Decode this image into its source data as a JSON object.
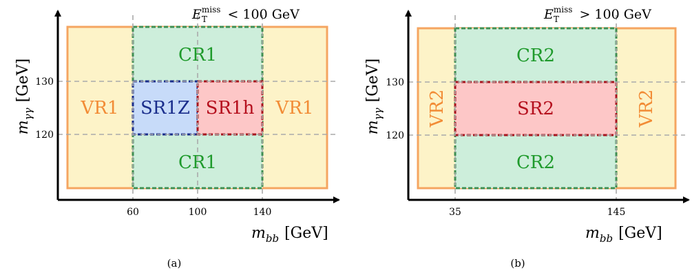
{
  "panels": [
    {
      "caption": "(a)",
      "condition": {
        "symbol": "E",
        "sub": "T",
        "sup": "miss",
        "relation": "< 100 GeV"
      },
      "x_label": {
        "symbol": "m",
        "sub": "bb",
        "unit": "[GeV]"
      },
      "y_label": {
        "symbol": "m",
        "sub": "γγ",
        "unit": "[GeV]"
      },
      "x_ticks": [
        "60",
        "100",
        "140"
      ],
      "y_ticks": [
        "120",
        "130"
      ],
      "regions": {
        "vr_left": "VR1",
        "vr_right": "VR1",
        "cr_top": "CR1",
        "cr_bottom": "CR1",
        "sr_a": "SR1Z",
        "sr_b": "SR1h"
      }
    },
    {
      "caption": "(b)",
      "condition": {
        "symbol": "E",
        "sub": "T",
        "sup": "miss",
        "relation": "> 100 GeV"
      },
      "x_label": {
        "symbol": "m",
        "sub": "bb",
        "unit": "[GeV]"
      },
      "y_label": {
        "symbol": "m",
        "sub": "γγ",
        "unit": "[GeV]"
      },
      "x_ticks": [
        "35",
        "145"
      ],
      "y_ticks": [
        "120",
        "130"
      ],
      "regions": {
        "vr_left": "VR2",
        "vr_right": "VR2",
        "cr_top": "CR2",
        "cr_bottom": "CR2",
        "sr": "SR2"
      }
    }
  ],
  "colors": {
    "vr_fill": "#fdf3c8",
    "vr_stroke": "#f5a561",
    "vr_text": "#f28c36",
    "cr_fill": "#cdeedb",
    "cr_stroke": "#3f8f52",
    "cr_text": "#1f9a2c",
    "srz_fill": "#c7dbf9",
    "srz_stroke": "#1a2e8c",
    "srz_text": "#1a2e8c",
    "srh_fill": "#fdc7c7",
    "srh_stroke": "#a8141e",
    "srh_text": "#b5101e"
  }
}
